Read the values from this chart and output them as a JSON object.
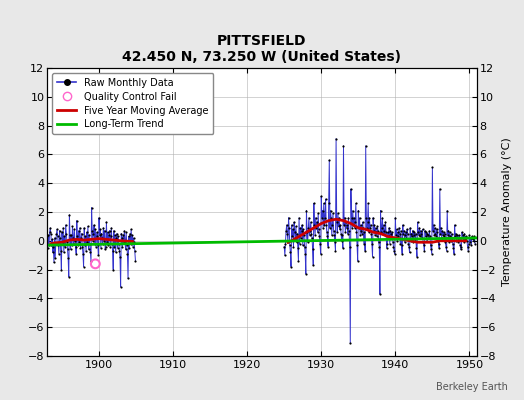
{
  "title": "PITTSFIELD",
  "subtitle": "42.450 N, 73.250 W (United States)",
  "ylabel": "Temperature Anomaly (°C)",
  "watermark": "Berkeley Earth",
  "xlim": [
    1893,
    1951
  ],
  "ylim": [
    -8,
    12
  ],
  "yticks": [
    -8,
    -6,
    -4,
    -2,
    0,
    2,
    4,
    6,
    8,
    10,
    12
  ],
  "xticks": [
    1900,
    1910,
    1920,
    1930,
    1940,
    1950
  ],
  "fig_bg_color": "#e8e8e8",
  "plot_bg_color": "#ffffff",
  "raw_color": "#3333cc",
  "raw_marker_color": "#000000",
  "qc_color": "#ff66cc",
  "moving_avg_color": "#cc0000",
  "trend_color": "#00bb00",
  "gap_start": 1905,
  "gap_end": 1924.5,
  "raw_data": [
    [
      1893.0,
      0.3
    ],
    [
      1893.083,
      -0.5
    ],
    [
      1893.167,
      0.4
    ],
    [
      1893.25,
      -0.3
    ],
    [
      1893.333,
      0.6
    ],
    [
      1893.417,
      0.9
    ],
    [
      1893.5,
      0.5
    ],
    [
      1893.583,
      -0.3
    ],
    [
      1893.667,
      0.1
    ],
    [
      1893.75,
      -0.8
    ],
    [
      1893.833,
      -0.4
    ],
    [
      1893.917,
      -1.5
    ],
    [
      1894.0,
      0.2
    ],
    [
      1894.083,
      -1.2
    ],
    [
      1894.167,
      -0.2
    ],
    [
      1894.25,
      0.5
    ],
    [
      1894.333,
      0.8
    ],
    [
      1894.417,
      0.3
    ],
    [
      1894.5,
      -0.3
    ],
    [
      1894.583,
      -0.9
    ],
    [
      1894.667,
      0.7
    ],
    [
      1894.75,
      0.2
    ],
    [
      1894.833,
      -0.7
    ],
    [
      1894.917,
      -2.0
    ],
    [
      1895.0,
      0.6
    ],
    [
      1895.083,
      -0.2
    ],
    [
      1895.167,
      0.9
    ],
    [
      1895.25,
      -0.8
    ],
    [
      1895.333,
      0.3
    ],
    [
      1895.417,
      -0.4
    ],
    [
      1895.5,
      1.1
    ],
    [
      1895.583,
      0.5
    ],
    [
      1895.667,
      -0.1
    ],
    [
      1895.75,
      -0.6
    ],
    [
      1895.833,
      -1.2
    ],
    [
      1895.917,
      -2.5
    ],
    [
      1896.0,
      1.8
    ],
    [
      1896.083,
      0.4
    ],
    [
      1896.167,
      -0.6
    ],
    [
      1896.25,
      0.4
    ],
    [
      1896.333,
      -0.3
    ],
    [
      1896.417,
      1.0
    ],
    [
      1896.5,
      0.2
    ],
    [
      1896.583,
      -0.2
    ],
    [
      1896.667,
      0.8
    ],
    [
      1896.75,
      0.0
    ],
    [
      1896.833,
      -0.4
    ],
    [
      1896.917,
      -0.9
    ],
    [
      1897.0,
      1.4
    ],
    [
      1897.083,
      0.3
    ],
    [
      1897.167,
      -0.3
    ],
    [
      1897.25,
      0.7
    ],
    [
      1897.333,
      -0.1
    ],
    [
      1897.417,
      0.9
    ],
    [
      1897.5,
      -0.5
    ],
    [
      1897.583,
      0.2
    ],
    [
      1897.667,
      0.5
    ],
    [
      1897.75,
      -0.4
    ],
    [
      1897.833,
      -0.9
    ],
    [
      1897.917,
      -1.8
    ],
    [
      1898.0,
      0.9
    ],
    [
      1898.083,
      -0.3
    ],
    [
      1898.167,
      0.3
    ],
    [
      1898.25,
      -0.7
    ],
    [
      1898.333,
      0.6
    ],
    [
      1898.417,
      -0.1
    ],
    [
      1898.5,
      1.0
    ],
    [
      1898.583,
      -0.6
    ],
    [
      1898.667,
      0.4
    ],
    [
      1898.75,
      -0.2
    ],
    [
      1898.833,
      -0.8
    ],
    [
      1898.917,
      -1.4
    ],
    [
      1899.0,
      2.3
    ],
    [
      1899.083,
      0.7
    ],
    [
      1899.167,
      0.0
    ],
    [
      1899.25,
      0.5
    ],
    [
      1899.333,
      1.1
    ],
    [
      1899.417,
      -0.2
    ],
    [
      1899.5,
      0.8
    ],
    [
      1899.583,
      -0.4
    ],
    [
      1899.667,
      0.3
    ],
    [
      1899.75,
      0.6
    ],
    [
      1899.833,
      -0.3
    ],
    [
      1899.917,
      -1.0
    ],
    [
      1900.0,
      1.6
    ],
    [
      1900.083,
      0.4
    ],
    [
      1900.167,
      0.8
    ],
    [
      1900.25,
      -0.5
    ],
    [
      1900.333,
      0.5
    ],
    [
      1900.417,
      0.2
    ],
    [
      1900.5,
      -0.2
    ],
    [
      1900.583,
      0.9
    ],
    [
      1900.667,
      0.0
    ],
    [
      1900.75,
      0.7
    ],
    [
      1900.833,
      -0.6
    ],
    [
      1900.917,
      -0.4
    ],
    [
      1901.0,
      1.3
    ],
    [
      1901.083,
      -0.1
    ],
    [
      1901.167,
      0.6
    ],
    [
      1901.25,
      -0.3
    ],
    [
      1901.333,
      0.4
    ],
    [
      1901.417,
      0.7
    ],
    [
      1901.5,
      -0.4
    ],
    [
      1901.583,
      0.3
    ],
    [
      1901.667,
      0.9
    ],
    [
      1901.75,
      -0.2
    ],
    [
      1901.833,
      -0.7
    ],
    [
      1901.917,
      -2.0
    ],
    [
      1902.0,
      0.7
    ],
    [
      1902.083,
      -0.4
    ],
    [
      1902.167,
      0.4
    ],
    [
      1902.25,
      -0.8
    ],
    [
      1902.333,
      0.2
    ],
    [
      1902.417,
      0.5
    ],
    [
      1902.5,
      -0.5
    ],
    [
      1902.583,
      0.3
    ],
    [
      1902.667,
      -0.2
    ],
    [
      1902.75,
      -0.7
    ],
    [
      1902.833,
      -1.1
    ],
    [
      1902.917,
      -3.2
    ],
    [
      1903.0,
      0.5
    ],
    [
      1903.083,
      0.2
    ],
    [
      1903.167,
      -0.4
    ],
    [
      1903.25,
      0.4
    ],
    [
      1903.333,
      -0.1
    ],
    [
      1903.417,
      0.7
    ],
    [
      1903.5,
      0.0
    ],
    [
      1903.583,
      -0.6
    ],
    [
      1903.667,
      0.6
    ],
    [
      1903.75,
      -0.3
    ],
    [
      1903.833,
      -0.9
    ],
    [
      1903.917,
      -2.6
    ],
    [
      1904.0,
      0.3
    ],
    [
      1904.083,
      -0.5
    ],
    [
      1904.167,
      0.5
    ],
    [
      1904.25,
      -0.2
    ],
    [
      1904.333,
      0.8
    ],
    [
      1904.417,
      0.0
    ],
    [
      1904.5,
      0.4
    ],
    [
      1904.583,
      -0.4
    ],
    [
      1904.667,
      0.2
    ],
    [
      1904.75,
      -0.1
    ],
    [
      1904.833,
      -0.7
    ],
    [
      1904.917,
      -1.4
    ],
    [
      1925.0,
      -0.4
    ],
    [
      1925.083,
      -1.0
    ],
    [
      1925.167,
      -0.2
    ],
    [
      1925.25,
      0.7
    ],
    [
      1925.333,
      1.1
    ],
    [
      1925.417,
      0.5
    ],
    [
      1925.5,
      -0.1
    ],
    [
      1925.583,
      1.6
    ],
    [
      1925.667,
      0.9
    ],
    [
      1925.75,
      -0.3
    ],
    [
      1925.833,
      -0.8
    ],
    [
      1925.917,
      -1.8
    ],
    [
      1926.0,
      1.1
    ],
    [
      1926.083,
      0.3
    ],
    [
      1926.167,
      0.8
    ],
    [
      1926.25,
      -0.4
    ],
    [
      1926.333,
      1.3
    ],
    [
      1926.417,
      0.6
    ],
    [
      1926.5,
      0.2
    ],
    [
      1926.583,
      1.0
    ],
    [
      1926.667,
      -0.1
    ],
    [
      1926.75,
      0.5
    ],
    [
      1926.833,
      -0.5
    ],
    [
      1926.917,
      -1.4
    ],
    [
      1927.0,
      1.6
    ],
    [
      1927.083,
      -0.2
    ],
    [
      1927.167,
      0.9
    ],
    [
      1927.25,
      0.2
    ],
    [
      1927.333,
      0.7
    ],
    [
      1927.417,
      1.1
    ],
    [
      1927.5,
      -0.3
    ],
    [
      1927.583,
      0.8
    ],
    [
      1927.667,
      0.4
    ],
    [
      1927.75,
      -0.4
    ],
    [
      1927.833,
      -0.9
    ],
    [
      1927.917,
      -2.3
    ],
    [
      1928.0,
      2.1
    ],
    [
      1928.083,
      0.6
    ],
    [
      1928.167,
      -0.1
    ],
    [
      1928.25,
      0.9
    ],
    [
      1928.333,
      1.6
    ],
    [
      1928.417,
      0.4
    ],
    [
      1928.5,
      0.7
    ],
    [
      1928.583,
      1.3
    ],
    [
      1928.667,
      0.5
    ],
    [
      1928.75,
      0.2
    ],
    [
      1928.833,
      -0.6
    ],
    [
      1928.917,
      -1.7
    ],
    [
      1929.0,
      2.6
    ],
    [
      1929.083,
      1.1
    ],
    [
      1929.167,
      0.4
    ],
    [
      1929.25,
      1.6
    ],
    [
      1929.333,
      0.9
    ],
    [
      1929.417,
      1.3
    ],
    [
      1929.5,
      0.6
    ],
    [
      1929.583,
      1.9
    ],
    [
      1929.667,
      0.8
    ],
    [
      1929.75,
      0.3
    ],
    [
      1929.833,
      -0.2
    ],
    [
      1929.917,
      -0.9
    ],
    [
      1930.0,
      3.1
    ],
    [
      1930.083,
      1.6
    ],
    [
      1930.167,
      2.1
    ],
    [
      1930.25,
      0.9
    ],
    [
      1930.333,
      2.6
    ],
    [
      1930.417,
      1.1
    ],
    [
      1930.5,
      1.6
    ],
    [
      1930.583,
      2.9
    ],
    [
      1930.667,
      1.1
    ],
    [
      1930.75,
      0.6
    ],
    [
      1930.833,
      0.3
    ],
    [
      1930.917,
      -0.4
    ],
    [
      1931.0,
      2.6
    ],
    [
      1931.083,
      5.6
    ],
    [
      1931.167,
      0.9
    ],
    [
      1931.25,
      2.1
    ],
    [
      1931.333,
      1.6
    ],
    [
      1931.417,
      0.4
    ],
    [
      1931.5,
      1.1
    ],
    [
      1931.583,
      1.9
    ],
    [
      1931.667,
      0.7
    ],
    [
      1931.75,
      0.4
    ],
    [
      1931.833,
      -0.1
    ],
    [
      1931.917,
      -0.7
    ],
    [
      1932.0,
      7.1
    ],
    [
      1932.083,
      1.3
    ],
    [
      1932.167,
      0.6
    ],
    [
      1932.25,
      1.9
    ],
    [
      1932.333,
      1.0
    ],
    [
      1932.417,
      1.6
    ],
    [
      1932.5,
      0.8
    ],
    [
      1932.583,
      1.1
    ],
    [
      1932.667,
      0.5
    ],
    [
      1932.75,
      0.0
    ],
    [
      1932.833,
      0.4
    ],
    [
      1932.917,
      -0.5
    ],
    [
      1933.0,
      6.6
    ],
    [
      1933.083,
      1.1
    ],
    [
      1933.167,
      1.6
    ],
    [
      1933.25,
      0.6
    ],
    [
      1933.333,
      1.3
    ],
    [
      1933.417,
      0.9
    ],
    [
      1933.5,
      1.1
    ],
    [
      1933.583,
      0.5
    ],
    [
      1933.667,
      1.6
    ],
    [
      1933.75,
      0.7
    ],
    [
      1933.833,
      -0.4
    ],
    [
      1933.917,
      -7.1
    ],
    [
      1934.0,
      3.6
    ],
    [
      1934.083,
      1.6
    ],
    [
      1934.167,
      0.9
    ],
    [
      1934.25,
      2.1
    ],
    [
      1934.333,
      1.1
    ],
    [
      1934.417,
      1.6
    ],
    [
      1934.5,
      0.9
    ],
    [
      1934.583,
      1.3
    ],
    [
      1934.667,
      2.6
    ],
    [
      1934.75,
      0.6
    ],
    [
      1934.833,
      -0.3
    ],
    [
      1934.917,
      -1.4
    ],
    [
      1935.0,
      2.1
    ],
    [
      1935.083,
      0.9
    ],
    [
      1935.167,
      1.6
    ],
    [
      1935.25,
      0.4
    ],
    [
      1935.333,
      1.1
    ],
    [
      1935.417,
      0.7
    ],
    [
      1935.5,
      0.5
    ],
    [
      1935.583,
      1.3
    ],
    [
      1935.667,
      0.9
    ],
    [
      1935.75,
      -0.2
    ],
    [
      1935.833,
      0.6
    ],
    [
      1935.917,
      -0.7
    ],
    [
      1936.0,
      6.6
    ],
    [
      1936.083,
      1.6
    ],
    [
      1936.167,
      0.9
    ],
    [
      1936.25,
      1.3
    ],
    [
      1936.333,
      2.6
    ],
    [
      1936.417,
      0.6
    ],
    [
      1936.5,
      1.6
    ],
    [
      1936.583,
      0.9
    ],
    [
      1936.667,
      1.1
    ],
    [
      1936.75,
      0.5
    ],
    [
      1936.833,
      -0.2
    ],
    [
      1936.917,
      -1.1
    ],
    [
      1937.0,
      1.6
    ],
    [
      1937.083,
      0.7
    ],
    [
      1937.167,
      1.1
    ],
    [
      1937.25,
      0.4
    ],
    [
      1937.333,
      0.9
    ],
    [
      1937.417,
      0.6
    ],
    [
      1937.5,
      0.3
    ],
    [
      1937.583,
      1.0
    ],
    [
      1937.667,
      0.7
    ],
    [
      1937.75,
      -0.1
    ],
    [
      1937.833,
      -0.4
    ],
    [
      1937.917,
      -3.7
    ],
    [
      1938.0,
      2.1
    ],
    [
      1938.083,
      0.6
    ],
    [
      1938.167,
      0.9
    ],
    [
      1938.25,
      1.6
    ],
    [
      1938.333,
      0.5
    ],
    [
      1938.417,
      1.1
    ],
    [
      1938.5,
      0.7
    ],
    [
      1938.583,
      0.4
    ],
    [
      1938.667,
      1.3
    ],
    [
      1938.75,
      0.6
    ],
    [
      1938.833,
      -0.5
    ],
    [
      1938.917,
      -0.2
    ],
    [
      1939.0,
      0.6
    ],
    [
      1939.083,
      0.3
    ],
    [
      1939.167,
      0.9
    ],
    [
      1939.25,
      -0.2
    ],
    [
      1939.333,
      0.7
    ],
    [
      1939.417,
      0.5
    ],
    [
      1939.5,
      0.2
    ],
    [
      1939.583,
      0.6
    ],
    [
      1939.667,
      -0.1
    ],
    [
      1939.75,
      -0.4
    ],
    [
      1939.833,
      -0.7
    ],
    [
      1939.917,
      -0.9
    ],
    [
      1940.0,
      1.6
    ],
    [
      1940.083,
      0.4
    ],
    [
      1940.167,
      0.8
    ],
    [
      1940.25,
      0.0
    ],
    [
      1940.333,
      0.6
    ],
    [
      1940.417,
      0.3
    ],
    [
      1940.5,
      0.9
    ],
    [
      1940.583,
      0.5
    ],
    [
      1940.667,
      -0.2
    ],
    [
      1940.75,
      0.7
    ],
    [
      1940.833,
      -0.3
    ],
    [
      1940.917,
      -0.9
    ],
    [
      1941.0,
      1.1
    ],
    [
      1941.083,
      0.5
    ],
    [
      1941.167,
      0.7
    ],
    [
      1941.25,
      -0.1
    ],
    [
      1941.333,
      0.4
    ],
    [
      1941.417,
      0.6
    ],
    [
      1941.5,
      0.2
    ],
    [
      1941.583,
      0.8
    ],
    [
      1941.667,
      0.5
    ],
    [
      1941.75,
      -0.2
    ],
    [
      1941.833,
      -0.4
    ],
    [
      1941.917,
      -0.8
    ],
    [
      1942.0,
      0.9
    ],
    [
      1942.083,
      0.0
    ],
    [
      1942.167,
      0.5
    ],
    [
      1942.25,
      0.3
    ],
    [
      1942.333,
      0.7
    ],
    [
      1942.417,
      -0.1
    ],
    [
      1942.5,
      0.6
    ],
    [
      1942.583,
      0.4
    ],
    [
      1942.667,
      0.0
    ],
    [
      1942.75,
      0.5
    ],
    [
      1942.833,
      -0.5
    ],
    [
      1942.917,
      -1.1
    ],
    [
      1943.0,
      1.3
    ],
    [
      1943.083,
      0.6
    ],
    [
      1943.167,
      0.4
    ],
    [
      1943.25,
      0.9
    ],
    [
      1943.333,
      0.3
    ],
    [
      1943.417,
      0.7
    ],
    [
      1943.5,
      0.5
    ],
    [
      1943.583,
      0.2
    ],
    [
      1943.667,
      0.8
    ],
    [
      1943.75,
      -0.1
    ],
    [
      1943.833,
      -0.3
    ],
    [
      1943.917,
      -0.7
    ],
    [
      1944.0,
      0.7
    ],
    [
      1944.083,
      0.3
    ],
    [
      1944.167,
      0.6
    ],
    [
      1944.25,
      0.0
    ],
    [
      1944.333,
      0.5
    ],
    [
      1944.417,
      0.4
    ],
    [
      1944.5,
      0.2
    ],
    [
      1944.583,
      0.7
    ],
    [
      1944.667,
      0.3
    ],
    [
      1944.75,
      -0.3
    ],
    [
      1944.833,
      -0.6
    ],
    [
      1944.917,
      -0.9
    ],
    [
      1945.0,
      5.1
    ],
    [
      1945.083,
      0.7
    ],
    [
      1945.167,
      1.1
    ],
    [
      1945.25,
      0.4
    ],
    [
      1945.333,
      0.9
    ],
    [
      1945.417,
      0.5
    ],
    [
      1945.5,
      0.3
    ],
    [
      1945.583,
      0.8
    ],
    [
      1945.667,
      0.6
    ],
    [
      1945.75,
      0.0
    ],
    [
      1945.833,
      -0.2
    ],
    [
      1945.917,
      -0.5
    ],
    [
      1946.0,
      3.6
    ],
    [
      1946.083,
      0.5
    ],
    [
      1946.167,
      0.9
    ],
    [
      1946.25,
      0.2
    ],
    [
      1946.333,
      0.7
    ],
    [
      1946.417,
      0.4
    ],
    [
      1946.5,
      0.6
    ],
    [
      1946.583,
      0.3
    ],
    [
      1946.667,
      0.5
    ],
    [
      1946.75,
      -0.1
    ],
    [
      1946.833,
      -0.4
    ],
    [
      1946.917,
      -0.7
    ],
    [
      1947.0,
      2.1
    ],
    [
      1947.083,
      0.4
    ],
    [
      1947.167,
      0.7
    ],
    [
      1947.25,
      -0.1
    ],
    [
      1947.333,
      0.6
    ],
    [
      1947.417,
      0.3
    ],
    [
      1947.5,
      0.0
    ],
    [
      1947.583,
      0.5
    ],
    [
      1947.667,
      0.2
    ],
    [
      1947.75,
      -0.2
    ],
    [
      1947.833,
      -0.5
    ],
    [
      1947.917,
      -0.9
    ],
    [
      1948.0,
      1.1
    ],
    [
      1948.083,
      0.3
    ],
    [
      1948.167,
      0.5
    ],
    [
      1948.25,
      0.0
    ],
    [
      1948.333,
      0.4
    ],
    [
      1948.417,
      0.2
    ],
    [
      1948.5,
      -0.1
    ],
    [
      1948.583,
      0.4
    ],
    [
      1948.667,
      0.2
    ],
    [
      1948.75,
      -0.3
    ],
    [
      1948.833,
      -0.6
    ],
    [
      1948.917,
      -0.4
    ],
    [
      1949.0,
      0.6
    ],
    [
      1949.083,
      0.2
    ],
    [
      1949.167,
      0.4
    ],
    [
      1949.25,
      -0.1
    ],
    [
      1949.333,
      0.5
    ],
    [
      1949.417,
      0.1
    ],
    [
      1949.5,
      0.3
    ],
    [
      1949.583,
      0.2
    ],
    [
      1949.667,
      0.0
    ],
    [
      1949.75,
      -0.4
    ],
    [
      1949.833,
      -0.7
    ],
    [
      1949.917,
      -0.2
    ],
    [
      1950.0,
      0.4
    ],
    [
      1950.083,
      -0.1
    ],
    [
      1950.167,
      0.2
    ],
    [
      1950.25,
      -0.3
    ],
    [
      1950.333,
      0.3
    ],
    [
      1950.417,
      0.1
    ],
    [
      1950.5,
      0.2
    ],
    [
      1950.583,
      0.0
    ],
    [
      1950.667,
      0.3
    ],
    [
      1950.75,
      -0.2
    ]
  ],
  "qc_fail_points": [
    [
      1899.5,
      -1.6
    ]
  ],
  "moving_avg_early": [
    [
      1893.5,
      -0.2
    ],
    [
      1894.0,
      -0.15
    ],
    [
      1895.0,
      -0.1
    ],
    [
      1896.0,
      0.05
    ],
    [
      1897.0,
      0.1
    ],
    [
      1898.0,
      0.05
    ],
    [
      1899.0,
      0.1
    ],
    [
      1900.0,
      0.15
    ],
    [
      1901.0,
      0.1
    ],
    [
      1902.0,
      0.05
    ],
    [
      1903.0,
      0.0
    ],
    [
      1904.5,
      -0.05
    ]
  ],
  "moving_avg_late": [
    [
      1925.5,
      -0.1
    ],
    [
      1926.0,
      0.0
    ],
    [
      1927.0,
      0.3
    ],
    [
      1928.0,
      0.6
    ],
    [
      1929.0,
      0.9
    ],
    [
      1930.0,
      1.2
    ],
    [
      1931.0,
      1.4
    ],
    [
      1932.0,
      1.5
    ],
    [
      1933.0,
      1.4
    ],
    [
      1934.0,
      1.2
    ],
    [
      1935.0,
      0.9
    ],
    [
      1936.0,
      0.8
    ],
    [
      1937.0,
      0.6
    ],
    [
      1938.0,
      0.5
    ],
    [
      1939.0,
      0.3
    ],
    [
      1940.0,
      0.2
    ],
    [
      1941.0,
      0.1
    ],
    [
      1942.0,
      0.0
    ],
    [
      1943.0,
      -0.1
    ],
    [
      1944.0,
      -0.1
    ],
    [
      1945.0,
      -0.1
    ],
    [
      1946.0,
      0.0
    ],
    [
      1947.0,
      0.0
    ],
    [
      1948.0,
      0.0
    ],
    [
      1949.5,
      0.0
    ]
  ],
  "trend_x": [
    1893,
    1951
  ],
  "trend_y": [
    -0.3,
    0.2
  ]
}
